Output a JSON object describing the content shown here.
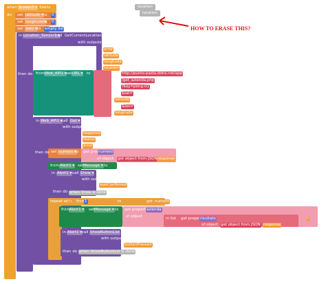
{
  "annotation": "HOW TO ERASE THIS?",
  "floating": [
    "location",
    "location"
  ],
  "blocks": [
    "when",
    "Screen3 ▾",
    "Starts",
    "do",
    "set",
    "latitude ▾",
    "to",
    "0",
    "set",
    "longitude ▾",
    "to",
    "0",
    "set",
    "dato ▾",
    "to",
    "empty list",
    "in",
    "Location_Sensor1 ▾",
    "call",
    "GetCurrentLocation",
    "with outputs",
    "error",
    "latitude",
    "longitude",
    "location",
    "then do",
    "from",
    "Web_API1 ▾",
    "set",
    "URL ▾",
    "to",
    "join",
    "http://punto-pasta.ddns.net/app",
    "/get_azienda.php",
    "?key=pong-01",
    "&lat=",
    "latitude",
    "&lon=",
    "longitude",
    "in",
    "Web_API1 ▾",
    "call",
    "Get ▾",
    "with outputs",
    "response",
    "status",
    "error",
    "then do",
    "set",
    "numero ▾",
    "to",
    "get property",
    "numero",
    "of object",
    "get object from JSON",
    "response",
    "from",
    "Alert1 ▾",
    "set",
    "Message ▾",
    "to",
    "in",
    "Alert1 ▾",
    "call",
    "Show ▾",
    "with outputs",
    "wasConfirmed",
    "then do",
    "when Show is done",
    "repeat with",
    "i",
    "from",
    "1",
    "to",
    "get",
    "numero",
    "from",
    "Alert1 ▾",
    "set",
    "Message ▾",
    "to",
    "get property",
    "azienda",
    "of object",
    "in list",
    "get property",
    "risultato",
    "of object",
    "get object from JSON",
    "response",
    "i",
    "in",
    "Alert1 ▾",
    "call",
    "ShowButtonList",
    "with outputs",
    "buttonPressed",
    "then do",
    "when ShowButtonList is done"
  ]
}
